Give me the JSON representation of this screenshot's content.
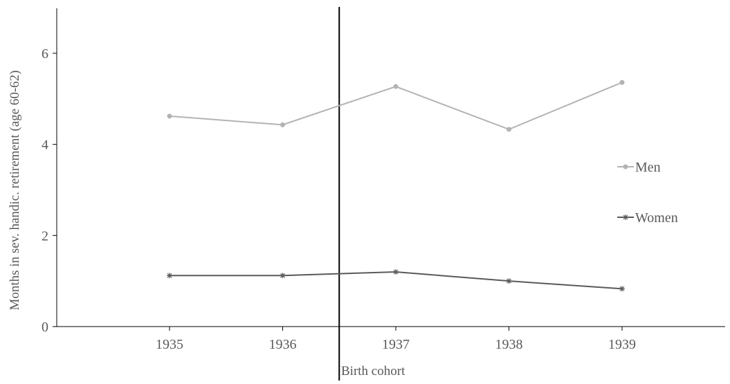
{
  "chart_data": {
    "type": "line",
    "title": "",
    "xlabel": "Birth cohort",
    "ylabel": "Months in sev. handic. retirement (age 60-62)",
    "categories": [
      "1935",
      "1936",
      "1937",
      "1938",
      "1939"
    ],
    "ylim": [
      0,
      7
    ],
    "yticks": [
      "0",
      "2",
      "4",
      "6"
    ],
    "grid": false,
    "legend_position": "right",
    "reference_line": {
      "between": [
        "1936",
        "1937"
      ],
      "position": 0.5
    },
    "series": [
      {
        "name": "Men",
        "marker": "circle",
        "color": "#b3b3b3",
        "values": [
          4.62,
          4.43,
          5.27,
          4.33,
          5.36
        ]
      },
      {
        "name": "Women",
        "marker": "asterisk",
        "color": "#595959",
        "values": [
          1.12,
          1.12,
          1.2,
          1.0,
          0.83
        ]
      }
    ]
  }
}
